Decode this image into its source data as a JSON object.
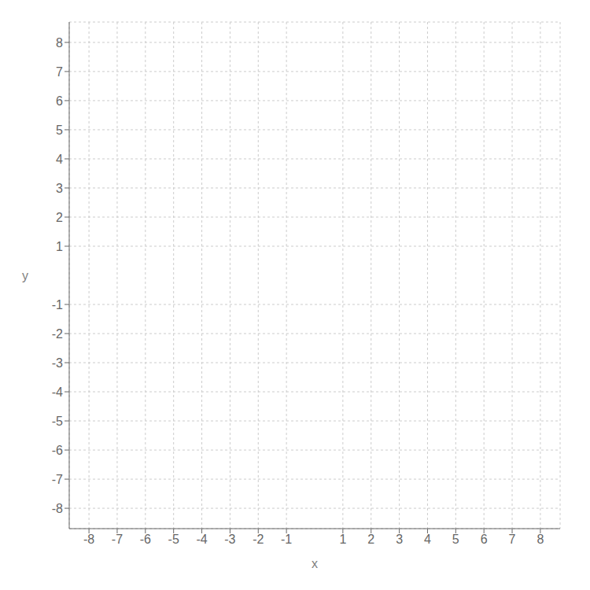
{
  "chart_data": {
    "type": "scatter",
    "xlabel": "x",
    "ylabel": "y",
    "xlim": [
      -8.7,
      8.7
    ],
    "ylim": [
      -8.7,
      8.7
    ],
    "xticks": [
      -8,
      -7,
      -6,
      -5,
      -4,
      -3,
      -2,
      -1,
      1,
      2,
      3,
      4,
      5,
      6,
      7,
      8
    ],
    "yticks": [
      -8,
      -7,
      -6,
      -5,
      -4,
      -3,
      -2,
      -1,
      1,
      2,
      3,
      4,
      5,
      6,
      7,
      8
    ],
    "grid": true
  }
}
